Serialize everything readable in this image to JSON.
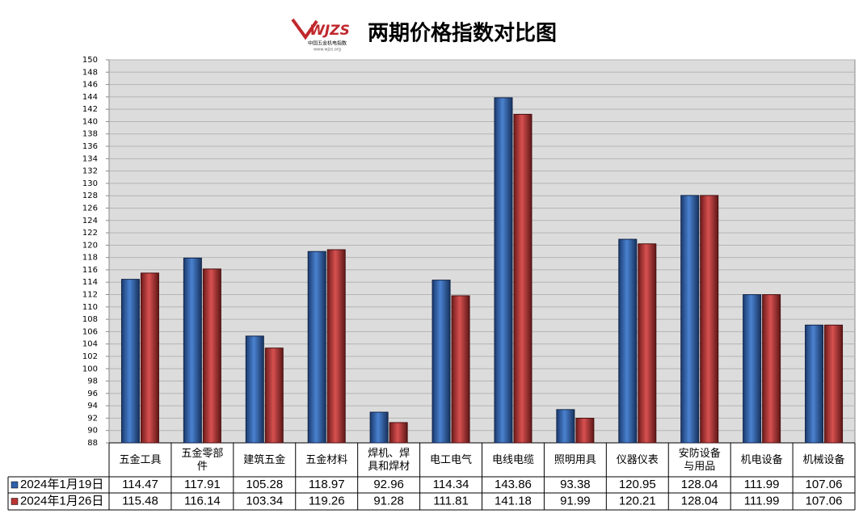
{
  "logo": {
    "text": "WJZS",
    "caption": "中国五金机电指数",
    "url": "www.wjzs.org"
  },
  "chart_data": {
    "type": "bar",
    "title": "两期价格指数对比图",
    "categories": [
      "五金工具",
      "五金零部件",
      "建筑五金",
      "五金材料",
      "焊机、焊具和焊材",
      "电工电气",
      "电线电缆",
      "照明用具",
      "仪器仪表",
      "安防设备与用品",
      "机电设备",
      "机械设备"
    ],
    "series": [
      {
        "name": "2024年1月19日",
        "color": "#2f5fa8",
        "values": [
          114.47,
          117.91,
          105.28,
          118.97,
          92.96,
          114.34,
          143.86,
          93.38,
          120.95,
          128.04,
          111.99,
          107.06
        ]
      },
      {
        "name": "2024年1月26日",
        "color": "#b83434",
        "values": [
          115.48,
          116.14,
          103.34,
          119.26,
          91.28,
          111.81,
          141.18,
          91.99,
          120.21,
          128.04,
          111.99,
          107.06
        ]
      }
    ],
    "ylim": [
      88,
      150
    ],
    "yticks": [
      88,
      90,
      92,
      94,
      96,
      98,
      100,
      102,
      104,
      106,
      108,
      110,
      112,
      114,
      116,
      118,
      120,
      122,
      124,
      126,
      128,
      130,
      132,
      134,
      136,
      138,
      140,
      142,
      144,
      146,
      148,
      150
    ],
    "grid": true
  }
}
